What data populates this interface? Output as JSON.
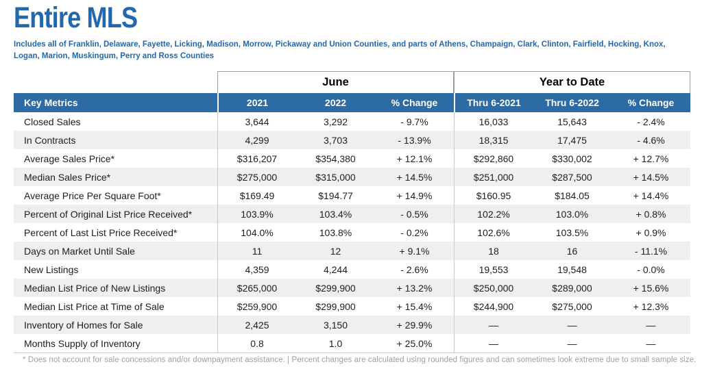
{
  "colors": {
    "brand_blue": "#2368ad",
    "header_bar_blue": "#2d6ba4",
    "row_alt_gray": "#efefef",
    "body_text": "#1d1d1d",
    "footnote_gray": "#9aa0a6",
    "divider_gray": "#c9c9c9",
    "group_border_gray": "#9e9e9e"
  },
  "page": {
    "title": "Entire MLS",
    "subtitle": "Includes all of Franklin, Delaware, Fayette, Licking, Madison, Morrow, Pickaway and Union Counties, and parts of Athens, Champaign, Clark, Clinton, Fairfield, Hocking, Knox, Logan, Marion, Muskingum, Perry and Ross Counties",
    "footnote": "* Does not account for sale concessions and/or downpayment assistance. | Percent changes are calculated using rounded figures and can sometimes look extreme due to small sample size."
  },
  "table": {
    "group_headers": {
      "june": "June",
      "year_to_date": "Year to Date"
    },
    "columns": [
      "Key Metrics",
      "2021",
      "2022",
      "% Change",
      "Thru 6-2021",
      "Thru 6-2022",
      "% Change"
    ],
    "rows": [
      {
        "metric": "Closed Sales",
        "values": [
          "3,644",
          "3,292",
          "- 9.7%",
          "16,033",
          "15,643",
          "- 2.4%"
        ]
      },
      {
        "metric": "In Contracts",
        "values": [
          "4,299",
          "3,703",
          "- 13.9%",
          "18,315",
          "17,475",
          "- 4.6%"
        ]
      },
      {
        "metric": "Average Sales Price*",
        "values": [
          "$316,207",
          "$354,380",
          "+ 12.1%",
          "$292,860",
          "$330,002",
          "+ 12.7%"
        ]
      },
      {
        "metric": "Median Sales Price*",
        "values": [
          "$275,000",
          "$315,000",
          "+ 14.5%",
          "$251,000",
          "$287,500",
          "+ 14.5%"
        ]
      },
      {
        "metric": "Average Price Per Square Foot*",
        "values": [
          "$169.49",
          "$194.77",
          "+ 14.9%",
          "$160.95",
          "$184.05",
          "+ 14.4%"
        ]
      },
      {
        "metric": "Percent of Original List Price Received*",
        "values": [
          "103.9%",
          "103.4%",
          "- 0.5%",
          "102.2%",
          "103.0%",
          "+ 0.8%"
        ]
      },
      {
        "metric": "Percent of Last List Price Received*",
        "values": [
          "104.0%",
          "103.8%",
          "- 0.2%",
          "102.6%",
          "103.5%",
          "+ 0.9%"
        ]
      },
      {
        "metric": "Days on Market Until Sale",
        "values": [
          "11",
          "12",
          "+ 9.1%",
          "18",
          "16",
          "- 11.1%"
        ]
      },
      {
        "metric": "New Listings",
        "values": [
          "4,359",
          "4,244",
          "- 2.6%",
          "19,553",
          "19,548",
          "- 0.0%"
        ]
      },
      {
        "metric": "Median List Price of New Listings",
        "values": [
          "$265,000",
          "$299,900",
          "+ 13.2%",
          "$250,000",
          "$289,000",
          "+ 15.6%"
        ]
      },
      {
        "metric": "Median List Price at Time of Sale",
        "values": [
          "$259,900",
          "$299,900",
          "+ 15.4%",
          "$244,900",
          "$275,000",
          "+ 12.3%"
        ]
      },
      {
        "metric": "Inventory of Homes for Sale",
        "values": [
          "2,425",
          "3,150",
          "+ 29.9%",
          "—",
          "—",
          "—"
        ]
      },
      {
        "metric": "Months Supply of Inventory",
        "values": [
          "0.8",
          "1.0",
          "+ 25.0%",
          "—",
          "—",
          "—"
        ]
      }
    ]
  }
}
